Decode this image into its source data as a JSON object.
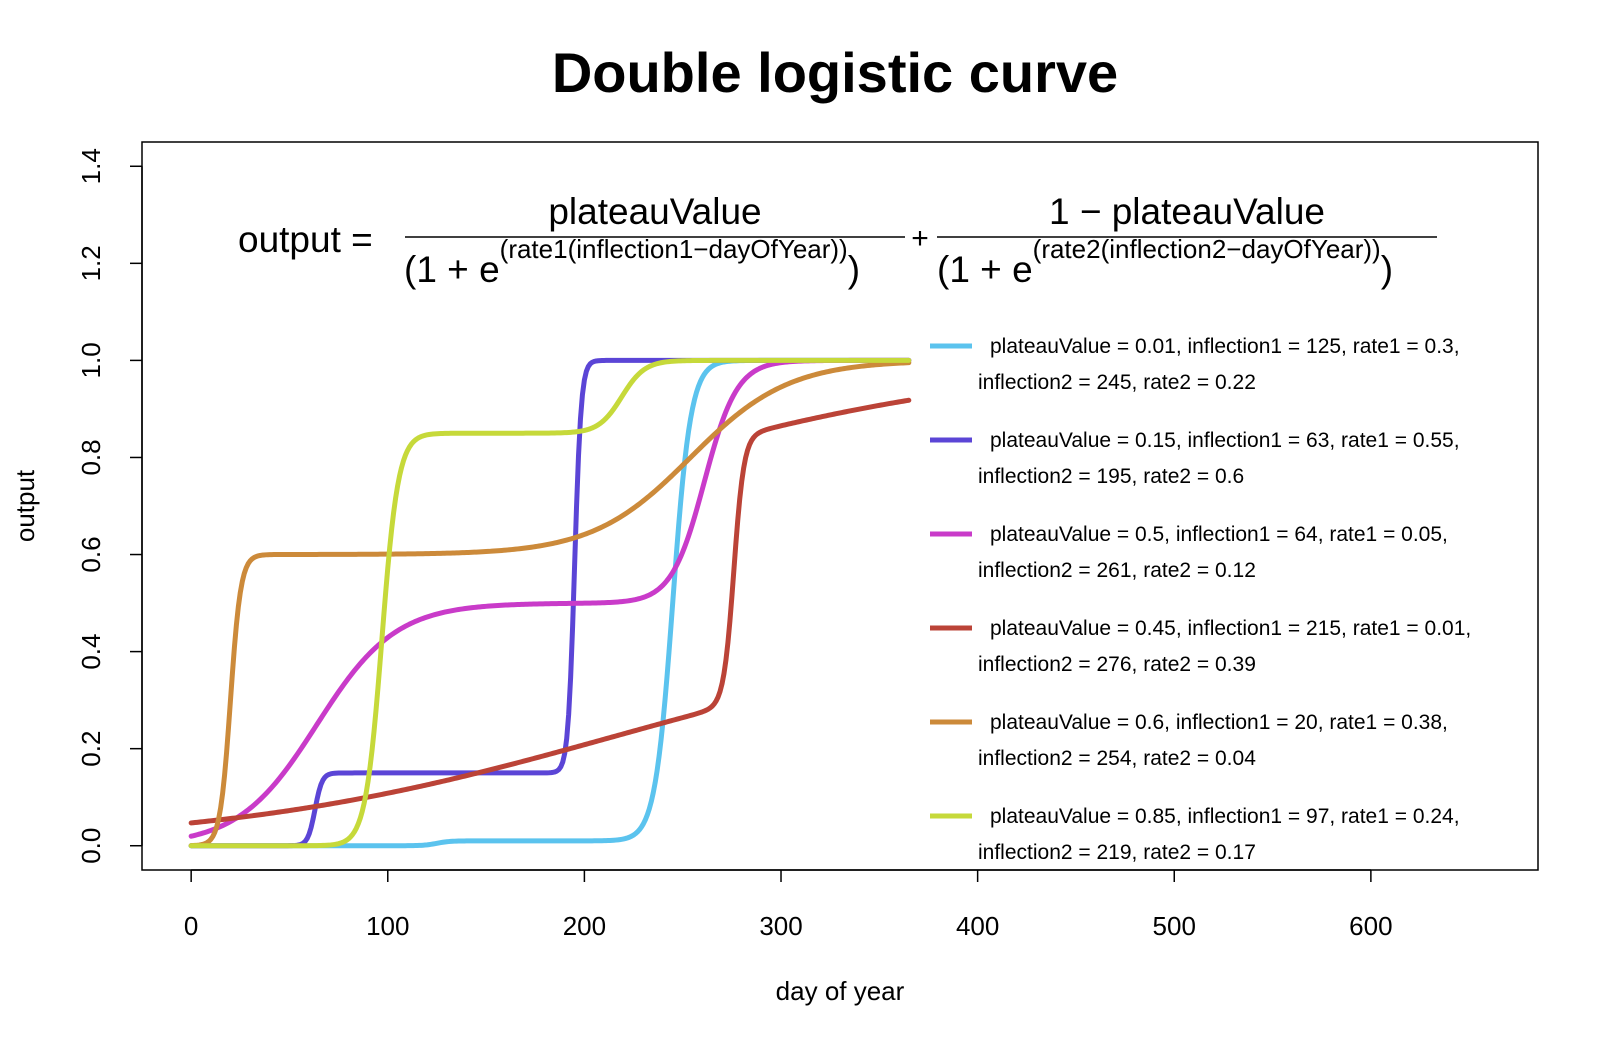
{
  "chart_data": {
    "type": "line",
    "title": "Double logistic curve",
    "xlabel": "day of year",
    "ylabel": "output",
    "xlim": [
      -25,
      685
    ],
    "ylim": [
      -0.05,
      1.45
    ],
    "x_ticks": [
      0,
      100,
      200,
      300,
      400,
      500,
      600
    ],
    "y_ticks": [
      0.0,
      0.2,
      0.4,
      0.6,
      0.8,
      1.0,
      1.2,
      1.4
    ],
    "x_tick_labels": [
      "0",
      "100",
      "200",
      "300",
      "400",
      "500",
      "600"
    ],
    "y_tick_labels": [
      "0.0",
      "0.2",
      "0.4",
      "0.6",
      "0.8",
      "1.0",
      "1.2",
      "1.4"
    ],
    "grid": false,
    "legend_position": "right",
    "formula": {
      "lhs": "output =",
      "num1": "plateauValue",
      "num2": "1 − plateauValue",
      "den1_prefix": "(1 + e",
      "den1_exp": "(rate1(inflection1−dayOfYear))",
      "den2_prefix": "(1 + e",
      "den2_exp": "(rate2(inflection2−dayOfYear))",
      "close": ")",
      "plus": "+"
    },
    "series": [
      {
        "legend_line1": "plateauValue = 0.01, inflection1 = 125, rate1 = 0.3,",
        "legend_line2": "inflection2 = 245, rate2 = 0.22",
        "color": "#5bc3ee",
        "params": {
          "plateauValue": 0.01,
          "inflection1": 125,
          "rate1": 0.3,
          "inflection2": 245,
          "rate2": 0.22
        }
      },
      {
        "legend_line1": "plateauValue = 0.15, inflection1 = 63, rate1 = 0.55,",
        "legend_line2": "inflection2 = 195, rate2 = 0.6",
        "color": "#5b45d6",
        "params": {
          "plateauValue": 0.15,
          "inflection1": 63,
          "rate1": 0.55,
          "inflection2": 195,
          "rate2": 0.6
        }
      },
      {
        "legend_line1": "plateauValue = 0.5, inflection1 = 64, rate1 = 0.05,",
        "legend_line2": "inflection2 = 261, rate2 = 0.12",
        "color": "#c93bc9",
        "params": {
          "plateauValue": 0.5,
          "inflection1": 64,
          "rate1": 0.05,
          "inflection2": 261,
          "rate2": 0.12
        }
      },
      {
        "legend_line1": "plateauValue = 0.45, inflection1 = 215, rate1 = 0.01,",
        "legend_line2": "inflection2 = 276, rate2 = 0.39",
        "color": "#bb4337",
        "params": {
          "plateauValue": 0.45,
          "inflection1": 215,
          "rate1": 0.01,
          "inflection2": 276,
          "rate2": 0.39
        }
      },
      {
        "legend_line1": "plateauValue = 0.6, inflection1 = 20, rate1 = 0.38,",
        "legend_line2": "inflection2 = 254, rate2 = 0.04",
        "color": "#cc8a3a",
        "params": {
          "plateauValue": 0.6,
          "inflection1": 20,
          "rate1": 0.38,
          "inflection2": 254,
          "rate2": 0.04
        }
      },
      {
        "legend_line1": "plateauValue = 0.85, inflection1 = 97, rate1 = 0.24,",
        "legend_line2": "inflection2 = 219, rate2 = 0.17",
        "color": "#c6d93a",
        "params": {
          "plateauValue": 0.85,
          "inflection1": 97,
          "rate1": 0.24,
          "inflection2": 219,
          "rate2": 0.17
        }
      }
    ],
    "day_range": [
      0,
      365
    ]
  }
}
